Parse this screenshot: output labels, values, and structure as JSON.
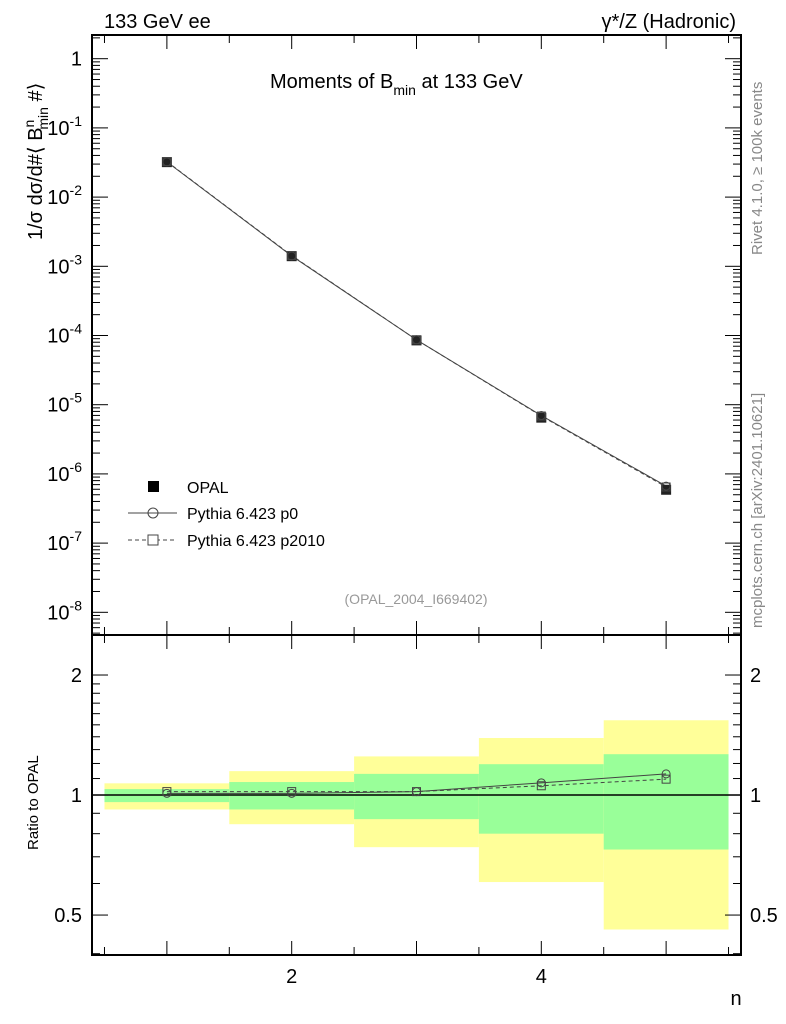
{
  "header": {
    "left": "133 GeV ee",
    "right": "γ*/Z (Hadronic)"
  },
  "side": {
    "rivet": "Rivet 4.1.0, ≥ 100k events",
    "mcplots": "mcplots.cern.ch [arXiv:2401.10621]"
  },
  "chart_data": [
    {
      "type": "scatter",
      "title": "Moments of B_min at 133 GeV",
      "title_main": "Moments of B",
      "title_sub": "min",
      "title_tail": " at 133 GeV",
      "ylabel": "1/σ  dσ/d#⟨ B^n_min #⟩",
      "ylabel_parts": {
        "a": "1/σ  dσ/d#⟨ B",
        "sup": "n",
        "sub": "min",
        "b": " #⟩"
      },
      "yscale": "log",
      "ylim": [
        4.7e-09,
        2.2
      ],
      "xlim": [
        0.4,
        5.6
      ],
      "ytick_labels": [
        "1",
        "10^-1",
        "10^-2",
        "10^-3",
        "10^-4",
        "10^-5",
        "10^-6",
        "10^-7",
        "10^-8"
      ],
      "ytick_values": [
        1,
        0.1,
        0.01,
        0.001,
        0.0001,
        1e-05,
        1e-06,
        1e-07,
        1e-08
      ],
      "annotation": "(OPAL_2004_I669402)",
      "legend_position": "bottom-left",
      "series": [
        {
          "name": "OPAL",
          "marker": "filled-square",
          "x": [
            1,
            2,
            3,
            4,
            5
          ],
          "values": [
            0.032,
            0.0014,
            8.5e-05,
            6.5e-06,
            5.9e-07
          ]
        },
        {
          "name": "Pythia 6.423 p0",
          "marker": "open-circle",
          "line": "solid",
          "x": [
            1,
            2,
            3,
            4,
            5
          ],
          "values": [
            0.0323,
            0.00141,
            8.67e-05,
            6.97e-06,
            6.67e-07
          ]
        },
        {
          "name": "Pythia 6.423 p2010",
          "marker": "open-square",
          "line": "dashed",
          "x": [
            1,
            2,
            3,
            4,
            5
          ],
          "values": [
            0.0326,
            0.00143,
            8.67e-05,
            6.86e-06,
            6.47e-07
          ]
        }
      ]
    },
    {
      "type": "line",
      "ylabel": "Ratio to OPAL",
      "xlabel": "n",
      "yscale": "log",
      "ylim": [
        0.397,
        2.52
      ],
      "xlim": [
        0.4,
        5.6
      ],
      "ytick_labels": [
        "0.5",
        "1",
        "2"
      ],
      "ytick_values": [
        0.5,
        1,
        2
      ],
      "xtick_labels": [
        "2",
        "4"
      ],
      "xtick_values": [
        2,
        4
      ],
      "bins": [
        [
          0.5,
          1.5
        ],
        [
          1.5,
          2.5
        ],
        [
          2.5,
          3.5
        ],
        [
          3.5,
          4.5
        ],
        [
          4.5,
          5.5
        ]
      ],
      "band_yellow": [
        [
          0.92,
          1.07
        ],
        [
          0.845,
          1.148
        ],
        [
          0.74,
          1.25
        ],
        [
          0.605,
          1.39
        ],
        [
          0.46,
          1.54
        ]
      ],
      "band_green": [
        [
          0.96,
          1.035
        ],
        [
          0.92,
          1.078
        ],
        [
          0.87,
          1.13
        ],
        [
          0.8,
          1.195
        ],
        [
          0.73,
          1.266
        ]
      ],
      "series": [
        {
          "name": "Pythia 6.423 p0",
          "x": [
            1,
            2,
            3,
            4,
            5
          ],
          "values": [
            1.01,
            1.01,
            1.02,
            1.073,
            1.13
          ]
        },
        {
          "name": "Pythia 6.423 p2010",
          "x": [
            1,
            2,
            3,
            4,
            5
          ],
          "values": [
            1.02,
            1.02,
            1.02,
            1.055,
            1.096
          ]
        }
      ]
    }
  ],
  "colors": {
    "yellow": "#ffff99",
    "green": "#99ff99",
    "line": "#444444"
  }
}
